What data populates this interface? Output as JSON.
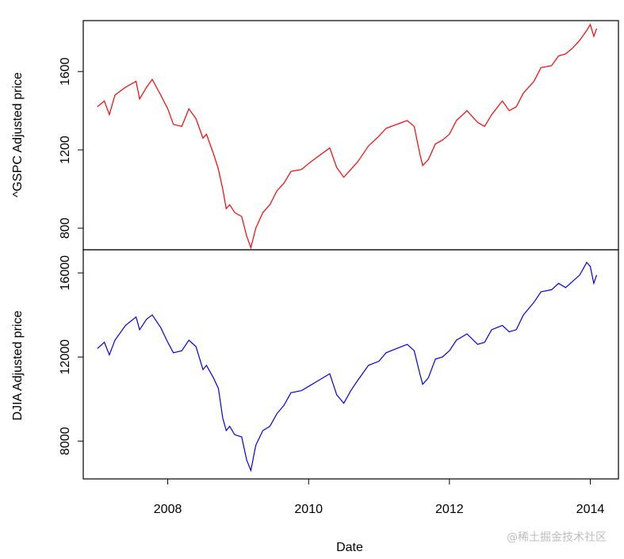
{
  "chart_data": [
    {
      "type": "line",
      "ylabel": "^GSPC Adjusted price",
      "ylim": [
        690,
        1860
      ],
      "yticks": [
        800,
        1200,
        1600
      ],
      "xlim": [
        2006.8,
        2014.4
      ],
      "grid": false,
      "series": [
        {
          "color": "#ff0000",
          "x": [
            2007.0,
            2007.1,
            2007.17,
            2007.25,
            2007.4,
            2007.55,
            2007.6,
            2007.7,
            2007.78,
            2007.9,
            2008.0,
            2008.08,
            2008.2,
            2008.3,
            2008.4,
            2008.5,
            2008.55,
            2008.65,
            2008.72,
            2008.78,
            2008.83,
            2008.88,
            2008.95,
            2009.05,
            2009.12,
            2009.18,
            2009.25,
            2009.35,
            2009.45,
            2009.55,
            2009.65,
            2009.75,
            2009.9,
            2010.0,
            2010.15,
            2010.3,
            2010.4,
            2010.5,
            2010.6,
            2010.7,
            2010.85,
            2011.0,
            2011.1,
            2011.25,
            2011.4,
            2011.5,
            2011.58,
            2011.62,
            2011.7,
            2011.8,
            2011.9,
            2012.0,
            2012.1,
            2012.25,
            2012.4,
            2012.5,
            2012.6,
            2012.75,
            2012.85,
            2012.95,
            2013.05,
            2013.2,
            2013.3,
            2013.45,
            2013.55,
            2013.65,
            2013.75,
            2013.85,
            2013.95,
            2014.0,
            2014.05,
            2014.09
          ],
          "y": [
            1420,
            1450,
            1380,
            1480,
            1520,
            1550,
            1460,
            1520,
            1560,
            1480,
            1410,
            1330,
            1320,
            1410,
            1360,
            1260,
            1280,
            1180,
            1100,
            1000,
            900,
            920,
            880,
            860,
            760,
            700,
            800,
            880,
            920,
            990,
            1030,
            1090,
            1100,
            1130,
            1170,
            1210,
            1110,
            1060,
            1100,
            1140,
            1220,
            1270,
            1310,
            1330,
            1350,
            1320,
            1180,
            1120,
            1150,
            1230,
            1250,
            1280,
            1350,
            1400,
            1340,
            1320,
            1380,
            1450,
            1400,
            1420,
            1490,
            1550,
            1620,
            1630,
            1680,
            1690,
            1720,
            1760,
            1810,
            1840,
            1780,
            1820
          ]
        }
      ]
    },
    {
      "type": "line",
      "xlabel": "Date",
      "ylabel": "DJIA Adjusted price",
      "ylim": [
        6200,
        17100
      ],
      "yticks": [
        8000,
        12000,
        16000
      ],
      "xlim": [
        2006.8,
        2014.4
      ],
      "xticks": [
        "2008",
        "2010",
        "2012",
        "2014"
      ],
      "xtick_values": [
        2008,
        2010,
        2012,
        2014
      ],
      "grid": false,
      "series": [
        {
          "color": "#0000ee",
          "x": [
            2007.0,
            2007.1,
            2007.17,
            2007.25,
            2007.4,
            2007.55,
            2007.6,
            2007.7,
            2007.78,
            2007.9,
            2008.0,
            2008.08,
            2008.2,
            2008.3,
            2008.4,
            2008.5,
            2008.55,
            2008.65,
            2008.72,
            2008.78,
            2008.83,
            2008.88,
            2008.95,
            2009.05,
            2009.12,
            2009.18,
            2009.25,
            2009.35,
            2009.45,
            2009.55,
            2009.65,
            2009.75,
            2009.9,
            2010.0,
            2010.15,
            2010.3,
            2010.4,
            2010.5,
            2010.6,
            2010.7,
            2010.85,
            2011.0,
            2011.1,
            2011.25,
            2011.4,
            2011.5,
            2011.58,
            2011.62,
            2011.7,
            2011.8,
            2011.9,
            2012.0,
            2012.1,
            2012.25,
            2012.4,
            2012.5,
            2012.6,
            2012.75,
            2012.85,
            2012.95,
            2013.05,
            2013.2,
            2013.3,
            2013.45,
            2013.55,
            2013.65,
            2013.75,
            2013.85,
            2013.95,
            2014.0,
            2014.05,
            2014.09
          ],
          "y": [
            12400,
            12700,
            12100,
            12800,
            13500,
            13900,
            13300,
            13800,
            14000,
            13400,
            12700,
            12200,
            12300,
            12800,
            12500,
            11400,
            11600,
            11000,
            10500,
            9100,
            8500,
            8700,
            8300,
            8200,
            7100,
            6600,
            7800,
            8500,
            8700,
            9300,
            9700,
            10300,
            10400,
            10600,
            10900,
            11200,
            10200,
            9800,
            10400,
            10900,
            11600,
            11800,
            12200,
            12400,
            12600,
            12300,
            11200,
            10700,
            11000,
            11900,
            12000,
            12300,
            12800,
            13100,
            12600,
            12700,
            13300,
            13500,
            13200,
            13300,
            14000,
            14600,
            15100,
            15200,
            15500,
            15300,
            15600,
            15900,
            16500,
            16300,
            15500,
            15900
          ]
        }
      ]
    }
  ],
  "watermark": "@稀土掘金技术社区"
}
